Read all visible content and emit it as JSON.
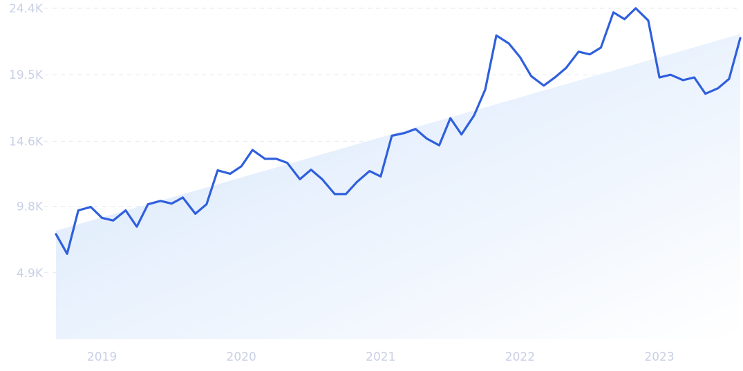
{
  "chart_data": {
    "type": "line",
    "title": "",
    "xlabel": "",
    "ylabel": "",
    "y_ticks": [
      "4.9K",
      "9.8K",
      "14.6K",
      "19.5K",
      "24.4K"
    ],
    "y_tick_values": [
      4900,
      9800,
      14600,
      19500,
      24400
    ],
    "x_ticks": [
      "2019",
      "2020",
      "2021",
      "2022",
      "2023"
    ],
    "x_tick_values": [
      2019.0,
      2020.0,
      2021.0,
      2022.0,
      2023.0
    ],
    "ylim": [
      0,
      24400
    ],
    "xlim": [
      2018.67,
      2023.58
    ],
    "grid": true,
    "colors": {
      "line": "#2f5fdc",
      "trend_fill": "#dce9fb",
      "tick_text": "#c9d0e6",
      "grid": "#e3e7f1"
    },
    "trend": {
      "x": [
        2018.67,
        2023.58
      ],
      "y": [
        8000,
        22500
      ]
    },
    "series": [
      {
        "x": [
          2018.67,
          2018.75,
          2018.83,
          2018.92,
          2019.0,
          2019.08,
          2019.17,
          2019.25,
          2019.33,
          2019.42,
          2019.5,
          2019.58,
          2019.67,
          2019.75,
          2019.83,
          2019.92,
          2020.0,
          2020.08,
          2020.17,
          2020.25,
          2020.33,
          2020.42,
          2020.5,
          2020.58,
          2020.67,
          2020.75,
          2020.83,
          2020.92,
          2021.0,
          2021.08,
          2021.17,
          2021.25,
          2021.33,
          2021.42,
          2021.5,
          2021.58,
          2021.67,
          2021.75,
          2021.83,
          2021.92,
          2022.0,
          2022.08,
          2022.17,
          2022.25,
          2022.33,
          2022.42,
          2022.5,
          2022.58,
          2022.67,
          2022.75,
          2022.83,
          2022.92,
          2023.0,
          2023.08,
          2023.17,
          2023.25,
          2023.33,
          2023.42,
          2023.5,
          2023.58
        ],
        "values": [
          7750,
          6300,
          9500,
          9750,
          8950,
          8750,
          9500,
          8300,
          9950,
          10200,
          10000,
          10450,
          9250,
          9950,
          12450,
          12200,
          12750,
          13950,
          13300,
          13300,
          13000,
          11800,
          12500,
          11800,
          10700,
          10700,
          11600,
          12400,
          12000,
          15000,
          15200,
          15500,
          14800,
          14300,
          16300,
          15100,
          16500,
          18400,
          22400,
          21800,
          20800,
          19400,
          18700,
          19300,
          20000,
          21200,
          21000,
          21500,
          24100,
          23600,
          24400,
          23500,
          19300,
          19500,
          19100,
          19300,
          18100,
          18500,
          19200,
          22200
        ]
      }
    ]
  }
}
